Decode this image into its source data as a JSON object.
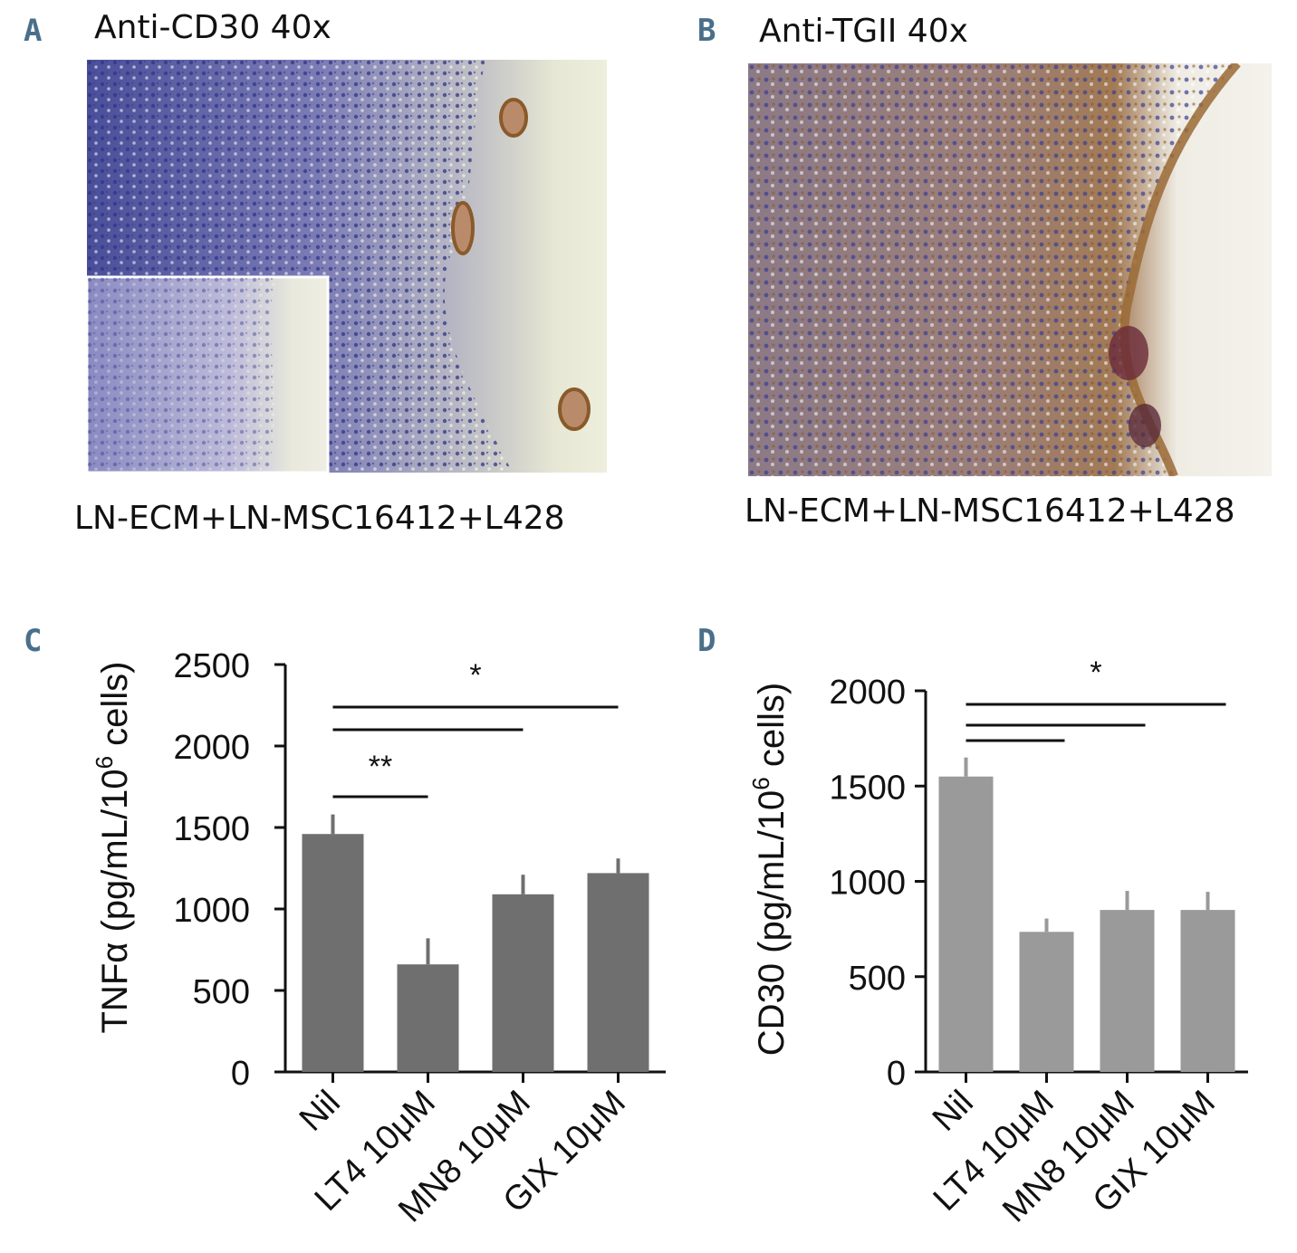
{
  "panels": {
    "a": {
      "letter": "A",
      "title": "Anti-CD30  40x",
      "caption": "LN-ECM+LN-MSC16412+L428"
    },
    "b": {
      "letter": "B",
      "title": "Anti-TGII 40x",
      "caption": "LN-ECM+LN-MSC16412+L428"
    },
    "c": {
      "letter": "C"
    },
    "d": {
      "letter": "D"
    }
  },
  "colors": {
    "bar_c": "#6f6f6f",
    "bar_d": "#9a9a9a",
    "axis": "#111111",
    "stain_blue": "#3a3f8f",
    "stain_brown": "#8a5a2a",
    "background_a": "#e6e7d4",
    "background_b": "#f1efe8"
  },
  "chart_data": [
    {
      "type": "bar",
      "panel": "C",
      "categories": [
        "Nil",
        "LT4 10μM",
        "MN8 10μM",
        "GIX 10μM"
      ],
      "values": [
        1460,
        660,
        1090,
        1220
      ],
      "errors": [
        120,
        160,
        120,
        90
      ],
      "ylabel": "TNFα (pg/mL/10",
      "ylabel_superscript": "6",
      "ylabel_suffix": " cells)",
      "ylim": [
        0,
        2500
      ],
      "yticks": [
        "0",
        "500",
        "1000",
        "1500",
        "2000",
        "2500"
      ],
      "significance": [
        {
          "from": "Nil",
          "to": "LT4 10μM",
          "label": "**"
        },
        {
          "from": "Nil",
          "to": "MN8 10μM",
          "label": ""
        },
        {
          "from": "Nil",
          "to": "GIX 10μM",
          "label": "*"
        }
      ]
    },
    {
      "type": "bar",
      "panel": "D",
      "categories": [
        "Nil",
        "LT4 10μM",
        "MN8 10μM",
        "GIX 10μM"
      ],
      "values": [
        1550,
        735,
        850,
        850
      ],
      "errors": [
        100,
        70,
        100,
        95
      ],
      "ylabel": "CD30 (pg/mL/10",
      "ylabel_superscript": "6",
      "ylabel_suffix": " cells)",
      "ylim": [
        0,
        2000
      ],
      "yticks": [
        "0",
        "500",
        "1000",
        "1500",
        "2000"
      ],
      "significance": [
        {
          "from": "Nil",
          "to": "LT4 10μM",
          "label": ""
        },
        {
          "from": "Nil",
          "to": "MN8 10μM",
          "label": ""
        },
        {
          "from": "Nil",
          "to": "GIX 10μM",
          "label": "*"
        }
      ]
    }
  ]
}
